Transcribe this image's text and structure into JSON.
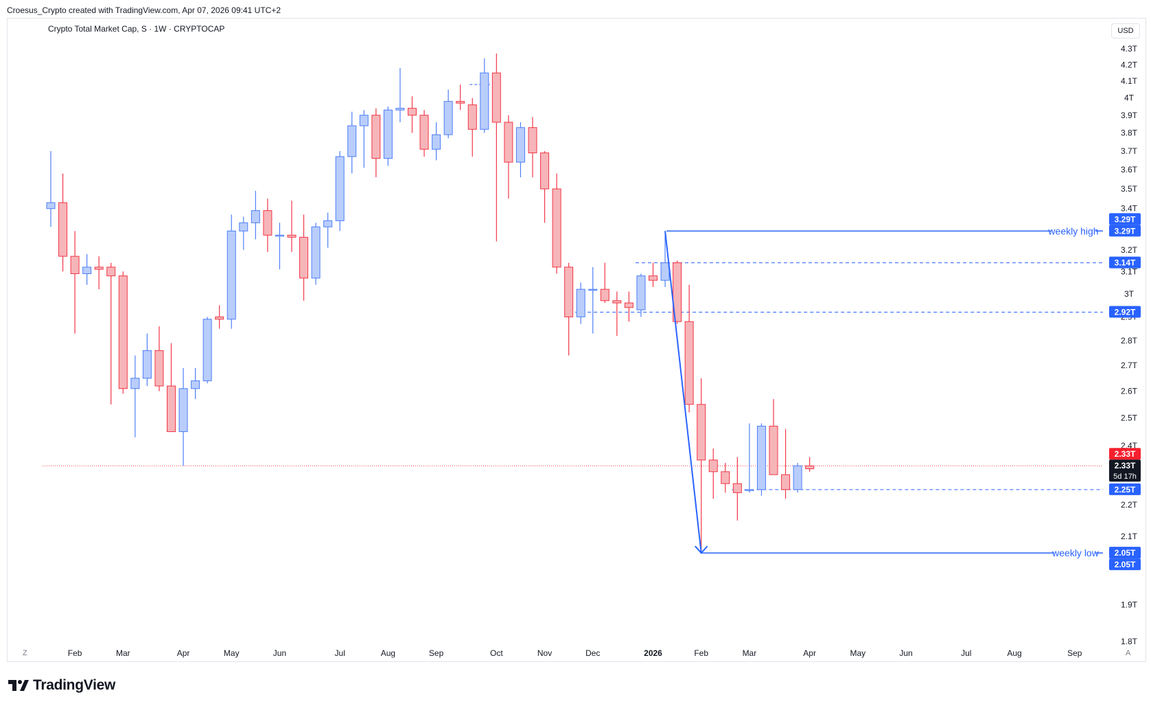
{
  "header": {
    "created_by": "Croesus_Crypto created with TradingView.com, Apr 07, 2026 09:41 UTC+2"
  },
  "symbol": {
    "title": "Crypto Total Market Cap, S · 1W · CRYPTOCAP"
  },
  "currency_button": "USD",
  "nav": {
    "left": "Z",
    "right": "A"
  },
  "footer": {
    "brand": "TradingView"
  },
  "colors": {
    "up": "#4d7ef7",
    "up_fill": "#b9cdfb",
    "down": "#f23645",
    "down_fill": "#f6b5b9",
    "annotation": "#2962ff",
    "grid_border": "#e0e3eb"
  },
  "chart_data": {
    "type": "candlestick",
    "title": "Crypto Total Market Cap, S · 1W · CRYPTOCAP",
    "ylabel": "USD",
    "y_scale": "log",
    "y_ticks": [
      {
        "v": 4.3,
        "label": "4.3T"
      },
      {
        "v": 4.2,
        "label": "4.2T"
      },
      {
        "v": 4.1,
        "label": "4.1T"
      },
      {
        "v": 4.0,
        "label": "4T"
      },
      {
        "v": 3.9,
        "label": "3.9T"
      },
      {
        "v": 3.8,
        "label": "3.8T"
      },
      {
        "v": 3.7,
        "label": "3.7T"
      },
      {
        "v": 3.6,
        "label": "3.6T"
      },
      {
        "v": 3.5,
        "label": "3.5T"
      },
      {
        "v": 3.4,
        "label": "3.4T"
      },
      {
        "v": 3.2,
        "label": "3.2T"
      },
      {
        "v": 3.1,
        "label": "3.1T"
      },
      {
        "v": 3.0,
        "label": "3T"
      },
      {
        "v": 2.9,
        "label": "2.9T"
      },
      {
        "v": 2.8,
        "label": "2.8T"
      },
      {
        "v": 2.7,
        "label": "2.7T"
      },
      {
        "v": 2.6,
        "label": "2.6T"
      },
      {
        "v": 2.5,
        "label": "2.5T"
      },
      {
        "v": 2.4,
        "label": "2.4T"
      },
      {
        "v": 2.2,
        "label": "2.2T"
      },
      {
        "v": 2.1,
        "label": "2.1T"
      },
      {
        "v": 1.9,
        "label": "1.9T"
      },
      {
        "v": 1.8,
        "label": "1.8T"
      }
    ],
    "x_ticks": [
      {
        "week": 2,
        "label": "Feb",
        "bold": false
      },
      {
        "week": 6,
        "label": "Mar",
        "bold": false
      },
      {
        "week": 11,
        "label": "Apr",
        "bold": false
      },
      {
        "week": 15,
        "label": "May",
        "bold": false
      },
      {
        "week": 19,
        "label": "Jun",
        "bold": false
      },
      {
        "week": 24,
        "label": "Jul",
        "bold": false
      },
      {
        "week": 28,
        "label": "Aug",
        "bold": false
      },
      {
        "week": 32,
        "label": "Sep",
        "bold": false
      },
      {
        "week": 37,
        "label": "Oct",
        "bold": false
      },
      {
        "week": 41,
        "label": "Nov",
        "bold": false
      },
      {
        "week": 45,
        "label": "Dec",
        "bold": false
      },
      {
        "week": 50,
        "label": "2026",
        "bold": true
      },
      {
        "week": 54,
        "label": "Feb",
        "bold": false
      },
      {
        "week": 58,
        "label": "Mar",
        "bold": false
      },
      {
        "week": 63,
        "label": "Apr",
        "bold": false
      },
      {
        "week": 67,
        "label": "May",
        "bold": false
      },
      {
        "week": 71,
        "label": "Jun",
        "bold": false
      },
      {
        "week": 76,
        "label": "Jul",
        "bold": false
      },
      {
        "week": 80,
        "label": "Aug",
        "bold": false
      },
      {
        "week": 85,
        "label": "Sep",
        "bold": false
      }
    ],
    "candles": [
      {
        "o": 3.4,
        "h": 3.7,
        "l": 3.31,
        "c": 3.43
      },
      {
        "o": 3.43,
        "h": 3.58,
        "l": 3.1,
        "c": 3.17
      },
      {
        "o": 3.17,
        "h": 3.29,
        "l": 2.83,
        "c": 3.09
      },
      {
        "o": 3.09,
        "h": 3.18,
        "l": 3.04,
        "c": 3.12
      },
      {
        "o": 3.12,
        "h": 3.17,
        "l": 3.02,
        "c": 3.11
      },
      {
        "o": 3.12,
        "h": 3.14,
        "l": 2.55,
        "c": 3.08
      },
      {
        "o": 3.08,
        "h": 3.1,
        "l": 2.59,
        "c": 2.61
      },
      {
        "o": 2.61,
        "h": 2.74,
        "l": 2.43,
        "c": 2.65
      },
      {
        "o": 2.65,
        "h": 2.83,
        "l": 2.62,
        "c": 2.76
      },
      {
        "o": 2.76,
        "h": 2.86,
        "l": 2.6,
        "c": 2.62
      },
      {
        "o": 2.62,
        "h": 2.79,
        "l": 2.45,
        "c": 2.45
      },
      {
        "o": 2.45,
        "h": 2.69,
        "l": 2.33,
        "c": 2.61
      },
      {
        "o": 2.61,
        "h": 2.69,
        "l": 2.57,
        "c": 2.64
      },
      {
        "o": 2.64,
        "h": 2.9,
        "l": 2.63,
        "c": 2.89
      },
      {
        "o": 2.9,
        "h": 2.95,
        "l": 2.85,
        "c": 2.89
      },
      {
        "o": 2.89,
        "h": 3.37,
        "l": 2.85,
        "c": 3.29
      },
      {
        "o": 3.29,
        "h": 3.36,
        "l": 3.2,
        "c": 3.33
      },
      {
        "o": 3.33,
        "h": 3.49,
        "l": 3.25,
        "c": 3.39
      },
      {
        "o": 3.39,
        "h": 3.45,
        "l": 3.19,
        "c": 3.27
      },
      {
        "o": 3.27,
        "h": 3.33,
        "l": 3.11,
        "c": 3.27
      },
      {
        "o": 3.27,
        "h": 3.44,
        "l": 3.19,
        "c": 3.26
      },
      {
        "o": 3.26,
        "h": 3.37,
        "l": 2.97,
        "c": 3.07
      },
      {
        "o": 3.07,
        "h": 3.33,
        "l": 3.04,
        "c": 3.31
      },
      {
        "o": 3.31,
        "h": 3.38,
        "l": 3.21,
        "c": 3.34
      },
      {
        "o": 3.34,
        "h": 3.7,
        "l": 3.29,
        "c": 3.67
      },
      {
        "o": 3.67,
        "h": 3.92,
        "l": 3.58,
        "c": 3.84
      },
      {
        "o": 3.84,
        "h": 3.93,
        "l": 3.61,
        "c": 3.9
      },
      {
        "o": 3.9,
        "h": 3.94,
        "l": 3.56,
        "c": 3.66
      },
      {
        "o": 3.66,
        "h": 3.95,
        "l": 3.62,
        "c": 3.93
      },
      {
        "o": 3.93,
        "h": 4.18,
        "l": 3.86,
        "c": 3.94
      },
      {
        "o": 3.94,
        "h": 4.01,
        "l": 3.8,
        "c": 3.9
      },
      {
        "o": 3.9,
        "h": 3.93,
        "l": 3.67,
        "c": 3.71
      },
      {
        "o": 3.71,
        "h": 3.86,
        "l": 3.65,
        "c": 3.79
      },
      {
        "o": 3.79,
        "h": 4.05,
        "l": 3.77,
        "c": 3.98
      },
      {
        "o": 3.98,
        "h": 4.08,
        "l": 3.93,
        "c": 3.97
      },
      {
        "o": 3.96,
        "h": 4.0,
        "l": 3.67,
        "c": 3.82
      },
      {
        "o": 3.82,
        "h": 4.24,
        "l": 3.8,
        "c": 4.15
      },
      {
        "o": 4.15,
        "h": 4.27,
        "l": 3.24,
        "c": 3.86
      },
      {
        "o": 3.86,
        "h": 3.9,
        "l": 3.45,
        "c": 3.64
      },
      {
        "o": 3.64,
        "h": 3.86,
        "l": 3.56,
        "c": 3.83
      },
      {
        "o": 3.83,
        "h": 3.89,
        "l": 3.56,
        "c": 3.69
      },
      {
        "o": 3.69,
        "h": 3.7,
        "l": 3.33,
        "c": 3.5
      },
      {
        "o": 3.5,
        "h": 3.58,
        "l": 3.09,
        "c": 3.12
      },
      {
        "o": 3.12,
        "h": 3.14,
        "l": 2.74,
        "c": 2.9
      },
      {
        "o": 2.9,
        "h": 3.05,
        "l": 2.87,
        "c": 3.02
      },
      {
        "o": 3.02,
        "h": 3.12,
        "l": 2.83,
        "c": 3.02
      },
      {
        "o": 3.02,
        "h": 3.14,
        "l": 2.96,
        "c": 2.97
      },
      {
        "o": 2.97,
        "h": 3.01,
        "l": 2.82,
        "c": 2.96
      },
      {
        "o": 2.96,
        "h": 3.01,
        "l": 2.88,
        "c": 2.94
      },
      {
        "o": 2.93,
        "h": 3.09,
        "l": 2.9,
        "c": 3.08
      },
      {
        "o": 3.08,
        "h": 3.14,
        "l": 3.03,
        "c": 3.06
      },
      {
        "o": 3.06,
        "h": 3.29,
        "l": 3.03,
        "c": 3.14
      },
      {
        "o": 3.14,
        "h": 3.15,
        "l": 2.87,
        "c": 2.88
      },
      {
        "o": 2.88,
        "h": 3.04,
        "l": 2.52,
        "c": 2.55
      },
      {
        "o": 2.55,
        "h": 2.65,
        "l": 2.05,
        "c": 2.35
      },
      {
        "o": 2.35,
        "h": 2.39,
        "l": 2.22,
        "c": 2.31
      },
      {
        "o": 2.31,
        "h": 2.34,
        "l": 2.24,
        "c": 2.27
      },
      {
        "o": 2.27,
        "h": 2.36,
        "l": 2.15,
        "c": 2.24
      },
      {
        "o": 2.25,
        "h": 2.48,
        "l": 2.24,
        "c": 2.25
      },
      {
        "o": 2.25,
        "h": 2.48,
        "l": 2.23,
        "c": 2.47
      },
      {
        "o": 2.47,
        "h": 2.57,
        "l": 2.3,
        "c": 2.3
      },
      {
        "o": 2.3,
        "h": 2.46,
        "l": 2.22,
        "c": 2.25
      },
      {
        "o": 2.25,
        "h": 2.34,
        "l": 2.24,
        "c": 2.33
      },
      {
        "o": 2.33,
        "h": 2.36,
        "l": 2.31,
        "c": 2.32
      }
    ],
    "annotations": {
      "weekly_high": {
        "label": "weekly high",
        "value": 3.29,
        "price_label": "3.29T"
      },
      "weekly_low": {
        "label": "weekly low",
        "value": 2.05,
        "price_label": "2.05T"
      },
      "levels": [
        {
          "value": 3.14,
          "price_label": "3.14T"
        },
        {
          "value": 2.92,
          "price_label": "2.92T"
        },
        {
          "value": 2.25,
          "price_label": "2.25T"
        }
      ],
      "current_price": {
        "value": 2.33,
        "price_label": "2.33T",
        "countdown": "5d 17h"
      },
      "reference_line": 2.33
    }
  }
}
